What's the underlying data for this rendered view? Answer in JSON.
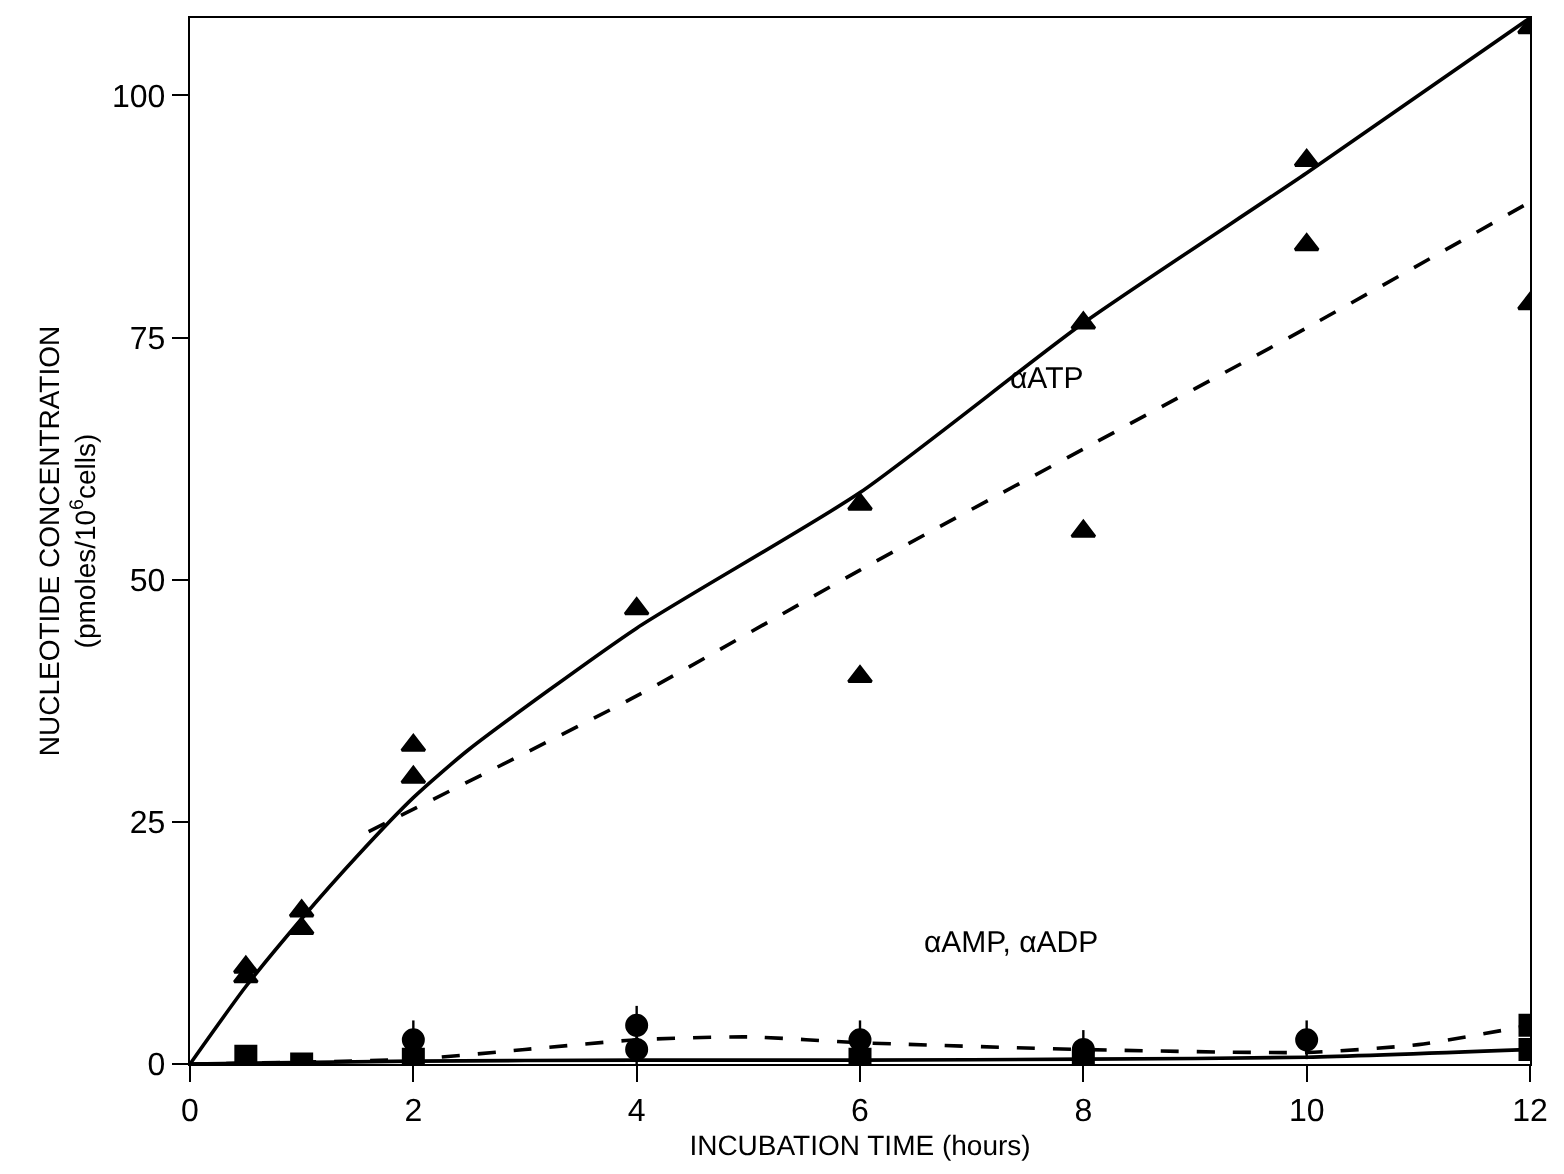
{
  "chart_data": {
    "type": "scatter",
    "xlabel": "INCUBATION TIME (hours)",
    "ylabel": "NUCLEOTIDE CONCENTRATION\n(pmoles/10$^{6}$cells)",
    "xlim": [
      0,
      12
    ],
    "ylim": [
      0,
      108
    ],
    "xticks": [
      0,
      2,
      4,
      6,
      8,
      10,
      12
    ],
    "yticks": [
      0,
      25,
      50,
      75,
      100
    ],
    "grid": false,
    "annotations": [
      "αATP",
      "αAMP, αADP"
    ],
    "series": [
      {
        "color": "#000000",
        "marker": "triangle",
        "x": [
          0.5,
          1,
          2,
          6,
          8,
          10,
          12
        ],
        "values": [
          10,
          14,
          29.6,
          57.8,
          76.5,
          93.3,
          107
        ]
      },
      {
        "color": "#000000",
        "marker": "triangle",
        "x": [
          0.5,
          1,
          2,
          4,
          6,
          8,
          10,
          12
        ],
        "values": [
          9,
          15.8,
          32.9,
          47,
          40,
          55,
          84.6,
          78.5
        ]
      },
      {
        "type": "line",
        "color": "#000000",
        "line_style": "solid",
        "x": [
          0,
          0.5,
          1,
          1.5,
          2,
          2.5,
          4,
          6,
          8,
          10,
          12
        ],
        "values": [
          0,
          8,
          15,
          21.5,
          27.5,
          32.5,
          45,
          59,
          76.5,
          92,
          108
        ]
      },
      {
        "type": "line",
        "color": "#000000",
        "line_style": "dashed",
        "x": [
          1.6,
          4,
          6,
          8,
          10,
          12
        ],
        "values": [
          24,
          38,
          51,
          63.5,
          76,
          89
        ]
      },
      {
        "color": "#000000",
        "marker": "circle",
        "x": [
          2,
          4,
          6,
          8,
          10
        ],
        "values": [
          2.5,
          1.5,
          2.5,
          1.5,
          2.5
        ],
        "errors": [
          2,
          2,
          2,
          2,
          2
        ]
      },
      {
        "color": "#000000",
        "marker": "circle",
        "x": [
          4
        ],
        "values": [
          4
        ],
        "errors": [
          2
        ]
      },
      {
        "color": "#000000",
        "marker": "square",
        "x": [
          12
        ],
        "values": [
          4
        ]
      },
      {
        "color": "#000000",
        "marker": "square",
        "x": [
          0.5,
          1,
          2,
          6,
          8,
          12
        ],
        "values": [
          0.8,
          0,
          0.5,
          0.5,
          0.3,
          1.5
        ]
      },
      {
        "type": "line",
        "color": "#000000",
        "line_style": "dashed",
        "x": [
          0,
          2,
          3,
          4,
          5,
          6,
          8,
          10,
          11,
          12
        ],
        "values": [
          0,
          0.5,
          1.5,
          2.5,
          2.8,
          2.2,
          1.5,
          1.2,
          2,
          4
        ]
      },
      {
        "type": "line",
        "color": "#000000",
        "line_style": "solid",
        "x": [
          0,
          2,
          4,
          6,
          8,
          10,
          12
        ],
        "values": [
          0,
          0.3,
          0.4,
          0.4,
          0.5,
          0.7,
          1.5
        ]
      }
    ]
  }
}
